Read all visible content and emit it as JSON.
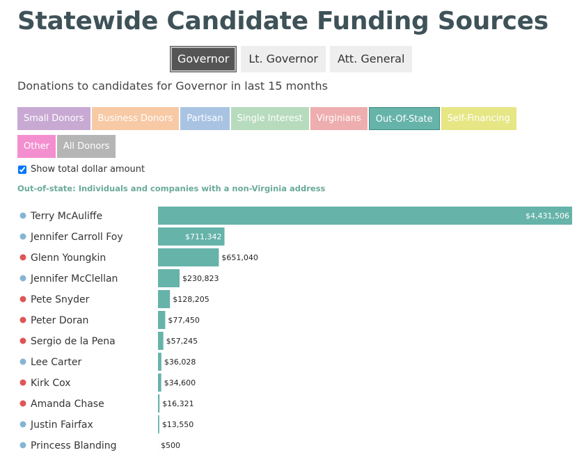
{
  "header": {
    "title": "Statewide Candidate Funding Sources",
    "subtitle": "Donations to candidates for Governor in last 15 months"
  },
  "office_tabs": [
    {
      "label": "Governor",
      "active": true
    },
    {
      "label": "Lt. Governor",
      "active": false
    },
    {
      "label": "Att. General",
      "active": false
    }
  ],
  "source_buttons": [
    {
      "label": "Small Donors",
      "color": "#c8a9d3",
      "active": false
    },
    {
      "label": "Business Donors",
      "color": "#f8c9a5",
      "active": false
    },
    {
      "label": "Partisan",
      "color": "#a9c3e3",
      "active": false
    },
    {
      "label": "Single Interest",
      "color": "#b7dbbd",
      "active": false
    },
    {
      "label": "Virginians",
      "color": "#eeadae",
      "active": false
    },
    {
      "label": "Out-Of-State",
      "color": "#66b3aa",
      "active": true
    },
    {
      "label": "Self-Financing",
      "color": "#e6e685",
      "active": false
    },
    {
      "label": "Other",
      "color": "#f48fcf",
      "active": false
    },
    {
      "label": "All Donors",
      "color": "#b5b5b5",
      "active": false
    }
  ],
  "show_total": {
    "label": "Show total dollar amount",
    "checked": true
  },
  "note": "Out-of-state: Individuals and companies with a non-Virginia address",
  "colors": {
    "bar": "#66b3aa",
    "democrat_dot": "#85b5d4",
    "republican_dot": "#e05555"
  },
  "chart_data": {
    "type": "bar",
    "orientation": "horizontal",
    "categories": [
      "Terry McAuliffe",
      "Jennifer Carroll Foy",
      "Glenn Youngkin",
      "Jennifer McClellan",
      "Pete Snyder",
      "Peter Doran",
      "Sergio de la Pena",
      "Lee Carter",
      "Kirk Cox",
      "Amanda Chase",
      "Justin Fairfax",
      "Princess Blanding"
    ],
    "values": [
      4431506,
      711342,
      651040,
      230823,
      128205,
      77450,
      57245,
      36028,
      34600,
      16321,
      13550,
      500
    ],
    "value_labels": [
      "$4,431,506",
      "$711,342",
      "$651,040",
      "$230,823",
      "$128,205",
      "$77,450",
      "$57,245",
      "$36,028",
      "$34,600",
      "$16,321",
      "$13,550",
      "$500"
    ],
    "party_colors": [
      "#85b5d4",
      "#85b5d4",
      "#e05555",
      "#85b5d4",
      "#e05555",
      "#e05555",
      "#e05555",
      "#85b5d4",
      "#e05555",
      "#e05555",
      "#85b5d4",
      "#85b5d4"
    ],
    "xlim": [
      0,
      4431506
    ],
    "grid": false,
    "legend": "none"
  }
}
